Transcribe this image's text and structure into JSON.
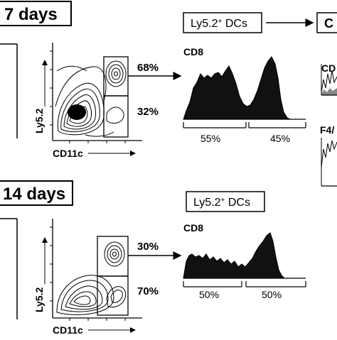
{
  "rows": [
    {
      "time_label": "7 days",
      "gate_high_pct": "68%",
      "gate_low_pct": "32%",
      "y_axis": "Ly5.2",
      "x_axis": "CD11c",
      "box_label_main": "Ly5.2",
      "box_label_sup": "+",
      "box_label_tail": " DCs",
      "hist_label": "CD8",
      "hist_left_pct": "55%",
      "hist_right_pct": "45%"
    },
    {
      "time_label": "14 days",
      "gate_high_pct": "30%",
      "gate_low_pct": "70%",
      "y_axis": "Ly5.2",
      "x_axis": "CD11c",
      "box_label_main": "Ly5.2",
      "box_label_sup": "+",
      "box_label_tail": " DCs",
      "hist_label": "CD8",
      "hist_left_pct": "50%",
      "hist_right_pct": "50%"
    }
  ],
  "right_panel": {
    "box_label": "C",
    "label_top": "CD",
    "label_bottom": "F4/"
  },
  "colors": {
    "ink": "#000000",
    "fill": "#111111",
    "paper": "#ffffff"
  }
}
